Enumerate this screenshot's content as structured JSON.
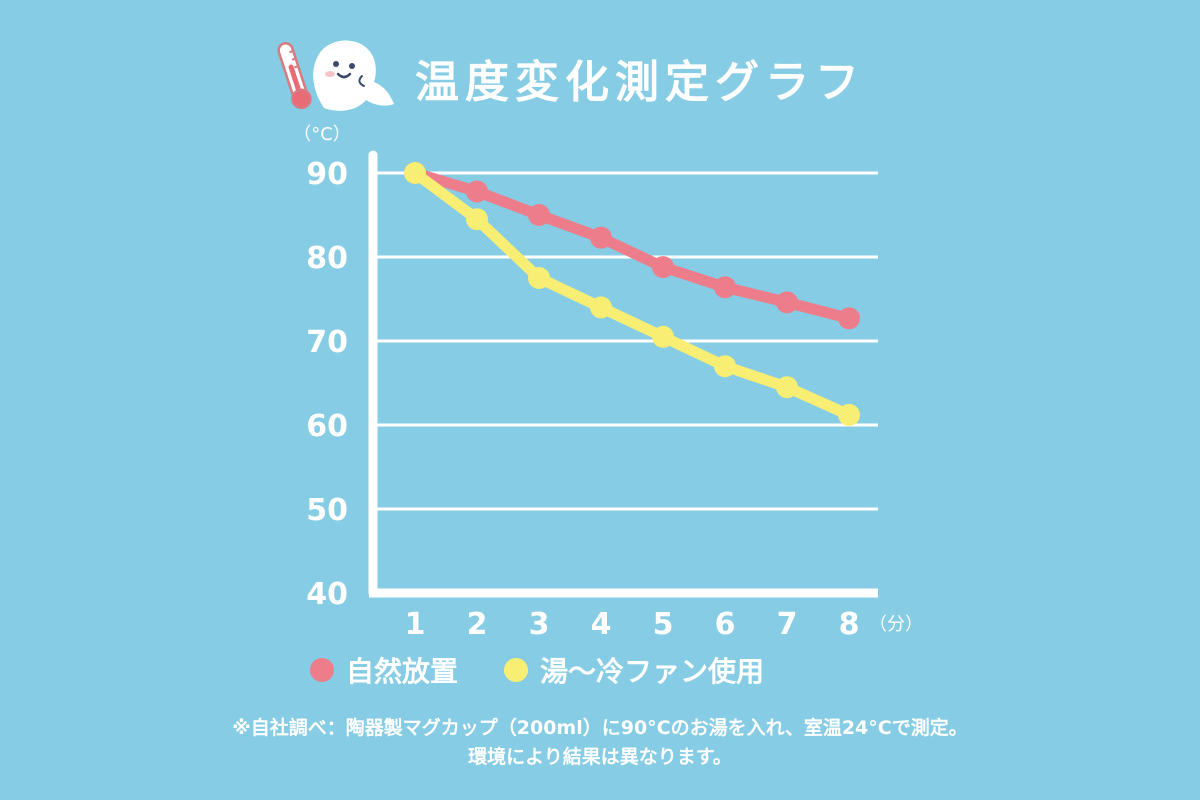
{
  "title": "温度変化測定グラフ",
  "colors": {
    "background": "#85cce4",
    "axis": "#ffffff",
    "grid": "#ffffff",
    "series_natural": "#ee7d8b",
    "series_fan": "#f7ee73"
  },
  "icons": [
    "thermometer-icon",
    "ghost-mascot-icon"
  ],
  "legend": {
    "natural": "自然放置",
    "fan": "湯〜冷ファン使用"
  },
  "note": {
    "line1": "※自社調べ：陶器製マグカップ（200ml）に90°Cのお湯を入れ、室温24°Cで測定。",
    "line2": "環境により結果は異なります。"
  },
  "chart_data": {
    "type": "line",
    "title": "温度変化測定グラフ",
    "x": [
      1,
      2,
      3,
      4,
      5,
      6,
      7,
      8
    ],
    "x_ticks": [
      "1",
      "2",
      "3",
      "4",
      "5",
      "6",
      "7",
      "8"
    ],
    "xlabel": "（分）",
    "ylabel": "（°C）",
    "ylim": [
      40,
      90
    ],
    "y_ticks": [
      40,
      50,
      60,
      70,
      80,
      90
    ],
    "grid": true,
    "legend_position": "bottom",
    "series": [
      {
        "name": "自然放置",
        "color": "#ee7d8b",
        "values": [
          90,
          87.8,
          85,
          82.3,
          78.8,
          76.4,
          74.6,
          72.7
        ]
      },
      {
        "name": "湯〜冷ファン使用",
        "color": "#f7ee73",
        "values": [
          90,
          84.5,
          77.5,
          74,
          70.5,
          67,
          64.5,
          61.2
        ]
      }
    ]
  }
}
